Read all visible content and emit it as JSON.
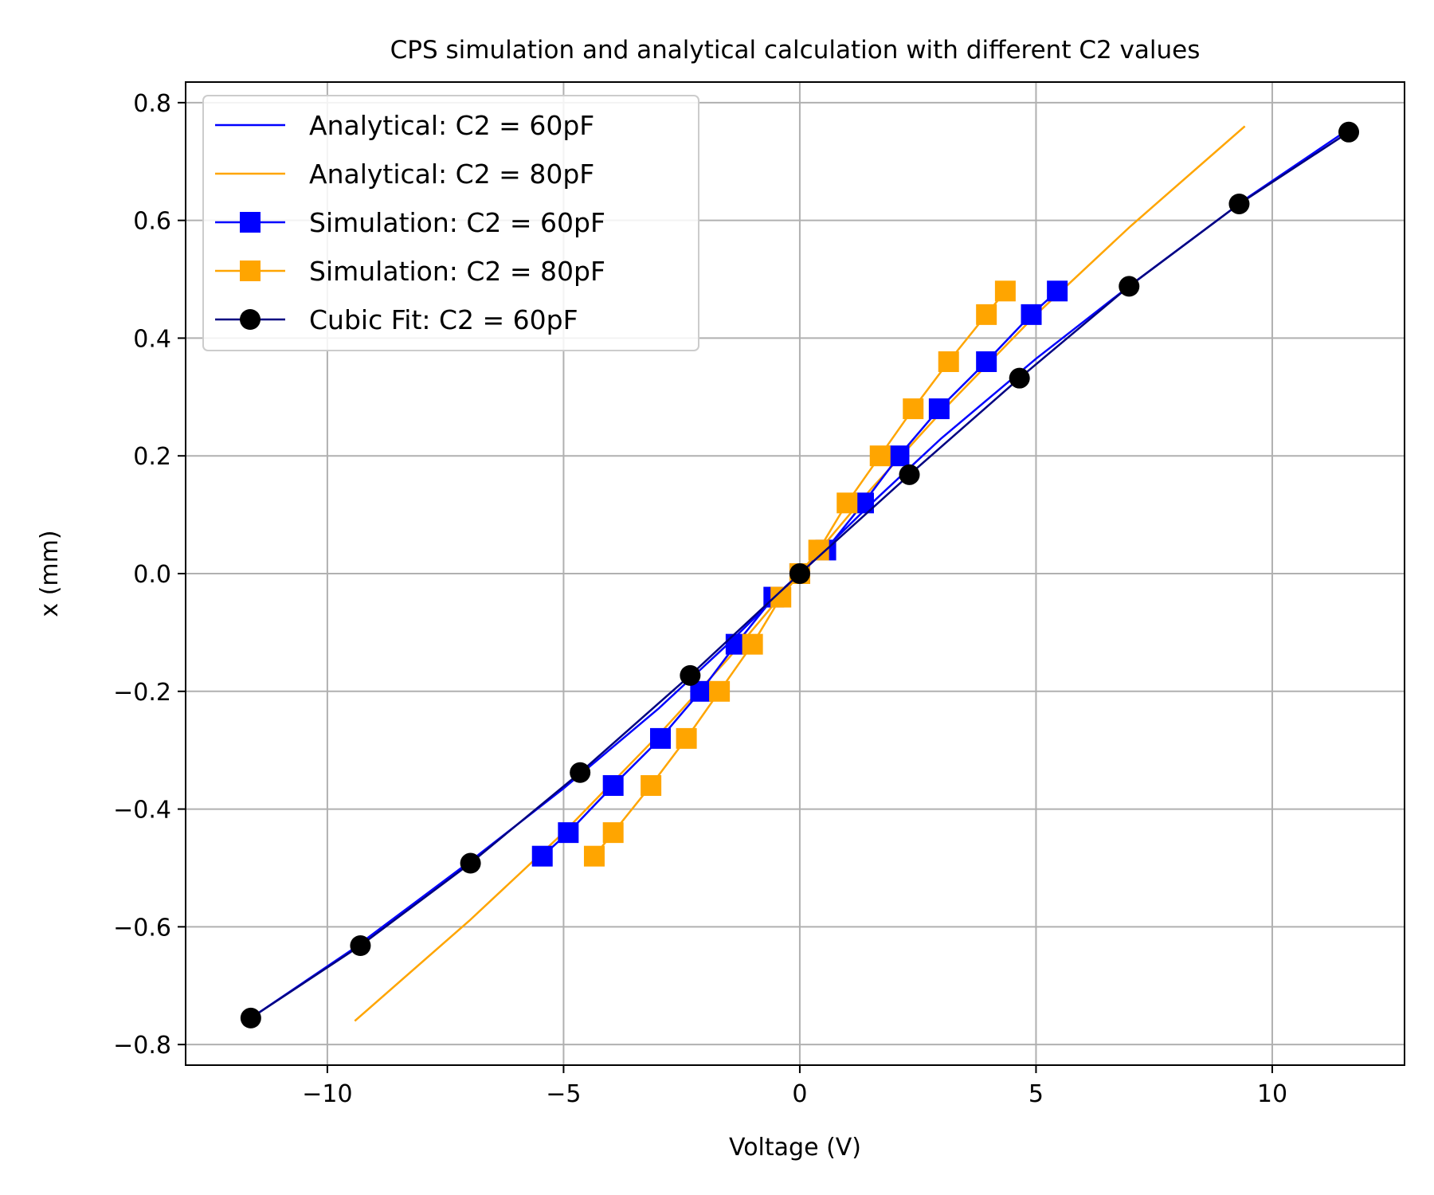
{
  "chart_data": {
    "type": "line",
    "title": "CPS simulation and analytical calculation with different C2 values",
    "xlabel": "Voltage (V)",
    "ylabel": "x (mm)",
    "xlim": [
      -13,
      12.8
    ],
    "ylim": [
      -0.835,
      0.835
    ],
    "xticks": [
      -10,
      -5,
      0,
      5,
      10
    ],
    "xtick_labels": [
      "−10",
      "−5",
      "0",
      "5",
      "10"
    ],
    "yticks": [
      -0.8,
      -0.6,
      -0.4,
      -0.2,
      0.0,
      0.2,
      0.4,
      0.6,
      0.8
    ],
    "ytick_labels": [
      "−0.8",
      "−0.6",
      "−0.4",
      "−0.2",
      "0.0",
      "0.2",
      "0.4",
      "0.6",
      "0.8"
    ],
    "grid": true,
    "legend_position": "upper-left",
    "series": [
      {
        "name": "Analytical: C2 = 60pF",
        "color": "#0000ff",
        "marker": "none",
        "x": [
          -11.62,
          -9.5,
          -7.0,
          -5.0,
          -3.0,
          -1.5,
          0,
          1.5,
          3.0,
          5.0,
          7.0,
          9.5,
          11.62
        ],
        "y": [
          -0.755,
          -0.64,
          -0.49,
          -0.365,
          -0.23,
          -0.118,
          0,
          0.118,
          0.23,
          0.365,
          0.49,
          0.64,
          0.755
        ]
      },
      {
        "name": "Analytical: C2 = 80pF",
        "color": "#ffa500",
        "marker": "none",
        "x": [
          -9.42,
          -7.0,
          -5.0,
          -3.0,
          -1.5,
          0,
          1.5,
          3.0,
          5.0,
          7.0,
          9.42
        ],
        "y": [
          -0.76,
          -0.59,
          -0.44,
          -0.275,
          -0.143,
          0,
          0.143,
          0.275,
          0.44,
          0.59,
          0.76
        ]
      },
      {
        "name": "Simulation: C2 = 60pF",
        "color": "#0000ff",
        "marker": "square",
        "x": [
          -5.45,
          -4.9,
          -3.95,
          -2.95,
          -2.1,
          -1.35,
          -0.55,
          0,
          0.55,
          1.35,
          2.1,
          2.95,
          3.95,
          4.9,
          5.45
        ],
        "y": [
          -0.48,
          -0.44,
          -0.36,
          -0.28,
          -0.2,
          -0.12,
          -0.04,
          0,
          0.04,
          0.12,
          0.2,
          0.28,
          0.36,
          0.44,
          0.48
        ]
      },
      {
        "name": "Simulation: C2 = 80pF",
        "color": "#ffa500",
        "marker": "square",
        "x": [
          -4.35,
          -3.95,
          -3.15,
          -2.4,
          -1.7,
          -1.0,
          -0.4,
          0,
          0.4,
          1.0,
          1.7,
          2.4,
          3.15,
          3.95,
          4.35
        ],
        "y": [
          -0.48,
          -0.44,
          -0.36,
          -0.28,
          -0.2,
          -0.12,
          -0.04,
          0,
          0.04,
          0.12,
          0.2,
          0.28,
          0.36,
          0.44,
          0.48
        ]
      },
      {
        "name": "Cubic Fit: C2 = 60pF",
        "color": "#000000",
        "line_color": "#000080",
        "marker": "circle",
        "x": [
          -11.62,
          -9.3,
          -6.97,
          -4.65,
          -2.32,
          0,
          2.32,
          4.65,
          6.97,
          9.3,
          11.62
        ],
        "y": [
          -0.755,
          -0.632,
          -0.492,
          -0.338,
          -0.173,
          0,
          0.168,
          0.332,
          0.488,
          0.628,
          0.75
        ]
      }
    ]
  }
}
